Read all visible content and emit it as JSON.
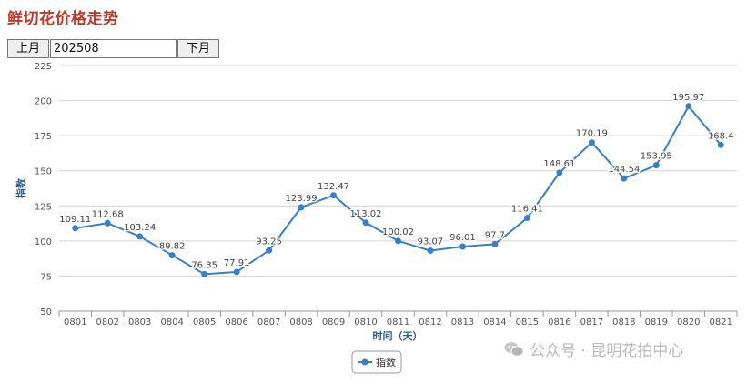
{
  "title": "鲜切花价格走势",
  "controls": {
    "prev_label": "上月",
    "month_value": "202508",
    "next_label": "下月"
  },
  "watermark": {
    "text": "公众号 · 昆明花拍中心",
    "icon": "wechat-icon"
  },
  "chart_data": {
    "type": "line",
    "ylabel": "指数",
    "xlabel": "时间（天）",
    "ylim": [
      50,
      225
    ],
    "yticks": [
      50,
      75,
      100,
      125,
      150,
      175,
      200,
      225
    ],
    "grid": true,
    "legend_position": "bottom-center",
    "categories": [
      "0801",
      "0802",
      "0803",
      "0804",
      "0805",
      "0806",
      "0807",
      "0808",
      "0809",
      "0810",
      "0811",
      "0812",
      "0813",
      "0814",
      "0815",
      "0816",
      "0817",
      "0818",
      "0819",
      "0820",
      "0821"
    ],
    "series": [
      {
        "name": "指数",
        "color": "#3a7fc6",
        "values": [
          109.11,
          112.68,
          103.24,
          89.82,
          76.35,
          77.91,
          93.25,
          123.99,
          132.47,
          113.02,
          100.02,
          93.07,
          96.01,
          97.7,
          116.41,
          148.61,
          170.19,
          144.54,
          153.95,
          195.97,
          168.4
        ],
        "labels": [
          "109.11",
          "112.68",
          "103.24",
          "89.82",
          "76.35",
          "77.91",
          "93.25",
          "123.99",
          "132.47",
          "113.02",
          "100.02",
          "93.07",
          "96.01",
          "97.7",
          "116.41",
          "148.61",
          "170.19",
          "144.54",
          "153.95",
          "195.97",
          "168.4"
        ]
      }
    ]
  }
}
